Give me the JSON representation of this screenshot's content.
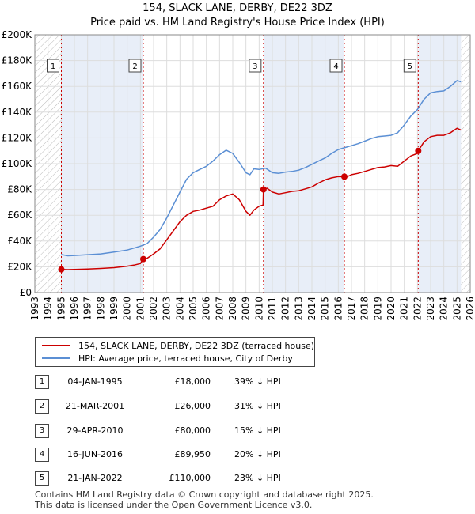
{
  "title_line1": "154, SLACK LANE, DERBY, DE22 3DZ",
  "title_line2": "Price paid vs. HM Land Registry's House Price Index (HPI)",
  "colors": {
    "property": "#cc0000",
    "hpi": "#5b8fd4",
    "shade": "#e8eef8"
  },
  "legend": {
    "property_label": "154, SLACK LANE, DERBY, DE22 3DZ (terraced house)",
    "hpi_label": "HPI: Average price, terraced house, City of Derby"
  },
  "sales": [
    {
      "num": "1",
      "date": "04-JAN-1995",
      "price": "£18,000",
      "hpi_diff": "39% ↓ HPI"
    },
    {
      "num": "2",
      "date": "21-MAR-2001",
      "price": "£26,000",
      "hpi_diff": "31% ↓ HPI"
    },
    {
      "num": "3",
      "date": "29-APR-2010",
      "price": "£80,000",
      "hpi_diff": "15% ↓ HPI"
    },
    {
      "num": "4",
      "date": "16-JUN-2016",
      "price": "£89,950",
      "hpi_diff": "20% ↓ HPI"
    },
    {
      "num": "5",
      "date": "21-JAN-2022",
      "price": "£110,000",
      "hpi_diff": "23% ↓ HPI"
    }
  ],
  "footer_line1": "Contains HM Land Registry data © Crown copyright and database right 2025.",
  "footer_line2": "This data is licensed under the Open Government Licence v3.0.",
  "chart_data": {
    "type": "line",
    "title": "154, SLACK LANE, DERBY, DE22 3DZ — Price paid vs. HM Land Registry's House Price Index (HPI)",
    "xlim": [
      1993,
      2026
    ],
    "ylim": [
      0,
      200000
    ],
    "x_ticks": [
      1993,
      1994,
      1995,
      1996,
      1997,
      1998,
      1999,
      2000,
      2001,
      2002,
      2003,
      2004,
      2005,
      2006,
      2007,
      2008,
      2009,
      2010,
      2011,
      2012,
      2013,
      2014,
      2015,
      2016,
      2017,
      2018,
      2019,
      2020,
      2021,
      2022,
      2023,
      2024,
      2025,
      2026
    ],
    "y_ticks": [
      {
        "value": 0,
        "label": "£0"
      },
      {
        "value": 20000,
        "label": "£20K"
      },
      {
        "value": 40000,
        "label": "£40K"
      },
      {
        "value": 60000,
        "label": "£60K"
      },
      {
        "value": 80000,
        "label": "£80K"
      },
      {
        "value": 100000,
        "label": "£100K"
      },
      {
        "value": 120000,
        "label": "£120K"
      },
      {
        "value": 140000,
        "label": "£140K"
      },
      {
        "value": 160000,
        "label": "£160K"
      },
      {
        "value": 180000,
        "label": "£180K"
      },
      {
        "value": 200000,
        "label": "£200K"
      }
    ],
    "hatch_before": 1995.0,
    "hatch_after": 2025.3,
    "sale_markers": [
      {
        "label": "1",
        "x": 1995.01,
        "y": 18000
      },
      {
        "label": "2",
        "x": 2001.22,
        "y": 26000
      },
      {
        "label": "3",
        "x": 2010.33,
        "y": 80000
      },
      {
        "label": "4",
        "x": 2016.46,
        "y": 89950
      },
      {
        "label": "5",
        "x": 2022.06,
        "y": 110000
      }
    ],
    "series": [
      {
        "name": "154, SLACK LANE, DERBY, DE22 3DZ (terraced house)",
        "color": "#cc0000",
        "points": [
          [
            1995.0,
            18000
          ],
          [
            1995.5,
            17800
          ],
          [
            1996.0,
            17900
          ],
          [
            1997.0,
            18200
          ],
          [
            1998.0,
            18700
          ],
          [
            1999.0,
            19300
          ],
          [
            2000.0,
            20500
          ],
          [
            2000.5,
            21300
          ],
          [
            2001.0,
            22500
          ],
          [
            2001.22,
            26000
          ],
          [
            2001.5,
            26500
          ],
          [
            2002.0,
            30000
          ],
          [
            2002.5,
            34000
          ],
          [
            2003.0,
            41000
          ],
          [
            2003.5,
            48000
          ],
          [
            2004.0,
            55000
          ],
          [
            2004.5,
            60000
          ],
          [
            2005.0,
            63000
          ],
          [
            2005.5,
            64000
          ],
          [
            2006.0,
            65500
          ],
          [
            2006.5,
            67000
          ],
          [
            2007.0,
            72000
          ],
          [
            2007.5,
            75000
          ],
          [
            2008.0,
            76500
          ],
          [
            2008.5,
            72000
          ],
          [
            2009.0,
            63000
          ],
          [
            2009.3,
            60000
          ],
          [
            2009.6,
            64000
          ],
          [
            2010.0,
            67000
          ],
          [
            2010.3,
            68000
          ],
          [
            2010.33,
            80000
          ],
          [
            2010.6,
            81000
          ],
          [
            2011.0,
            78000
          ],
          [
            2011.5,
            76500
          ],
          [
            2012.0,
            77500
          ],
          [
            2012.5,
            78500
          ],
          [
            2013.0,
            79000
          ],
          [
            2013.5,
            80500
          ],
          [
            2014.0,
            82000
          ],
          [
            2014.5,
            85000
          ],
          [
            2015.0,
            87500
          ],
          [
            2015.5,
            89000
          ],
          [
            2016.0,
            90000
          ],
          [
            2016.46,
            89950
          ],
          [
            2016.8,
            90500
          ],
          [
            2017.0,
            91500
          ],
          [
            2017.5,
            92500
          ],
          [
            2018.0,
            94000
          ],
          [
            2018.5,
            95500
          ],
          [
            2019.0,
            97000
          ],
          [
            2019.5,
            97500
          ],
          [
            2020.0,
            98500
          ],
          [
            2020.5,
            98000
          ],
          [
            2021.0,
            102000
          ],
          [
            2021.5,
            106000
          ],
          [
            2022.0,
            108000
          ],
          [
            2022.06,
            110000
          ],
          [
            2022.5,
            117000
          ],
          [
            2023.0,
            121000
          ],
          [
            2023.5,
            122000
          ],
          [
            2024.0,
            122000
          ],
          [
            2024.5,
            124000
          ],
          [
            2025.0,
            127500
          ],
          [
            2025.3,
            126000
          ]
        ]
      },
      {
        "name": "HPI: Average price, terraced house, City of Derby",
        "color": "#5b8fd4",
        "points": [
          [
            1995.0,
            29500
          ],
          [
            1995.5,
            28500
          ],
          [
            1996.0,
            28800
          ],
          [
            1997.0,
            29400
          ],
          [
            1998.0,
            30000
          ],
          [
            1999.0,
            31500
          ],
          [
            2000.0,
            33000
          ],
          [
            2000.5,
            34500
          ],
          [
            2001.0,
            36000
          ],
          [
            2001.5,
            38000
          ],
          [
            2002.0,
            43000
          ],
          [
            2002.5,
            49000
          ],
          [
            2003.0,
            58000
          ],
          [
            2003.5,
            68000
          ],
          [
            2004.0,
            78000
          ],
          [
            2004.5,
            88000
          ],
          [
            2005.0,
            93000
          ],
          [
            2005.5,
            95500
          ],
          [
            2006.0,
            98000
          ],
          [
            2006.5,
            102000
          ],
          [
            2007.0,
            107000
          ],
          [
            2007.5,
            110500
          ],
          [
            2008.0,
            108000
          ],
          [
            2008.5,
            101000
          ],
          [
            2009.0,
            93000
          ],
          [
            2009.3,
            91500
          ],
          [
            2009.6,
            96000
          ],
          [
            2010.0,
            95500
          ],
          [
            2010.5,
            96500
          ],
          [
            2011.0,
            93000
          ],
          [
            2011.5,
            92500
          ],
          [
            2012.0,
            93500
          ],
          [
            2012.5,
            94000
          ],
          [
            2013.0,
            95000
          ],
          [
            2013.5,
            97000
          ],
          [
            2014.0,
            99500
          ],
          [
            2014.5,
            102000
          ],
          [
            2015.0,
            104500
          ],
          [
            2015.5,
            108000
          ],
          [
            2016.0,
            111000
          ],
          [
            2016.5,
            112500
          ],
          [
            2017.0,
            114000
          ],
          [
            2017.5,
            115500
          ],
          [
            2018.0,
            117500
          ],
          [
            2018.5,
            119500
          ],
          [
            2019.0,
            121000
          ],
          [
            2019.5,
            121500
          ],
          [
            2020.0,
            122000
          ],
          [
            2020.5,
            124000
          ],
          [
            2021.0,
            130000
          ],
          [
            2021.5,
            137000
          ],
          [
            2022.0,
            142000
          ],
          [
            2022.5,
            150000
          ],
          [
            2023.0,
            155000
          ],
          [
            2023.5,
            156000
          ],
          [
            2024.0,
            156500
          ],
          [
            2024.5,
            160000
          ],
          [
            2025.0,
            164500
          ],
          [
            2025.3,
            163500
          ]
        ]
      }
    ]
  }
}
